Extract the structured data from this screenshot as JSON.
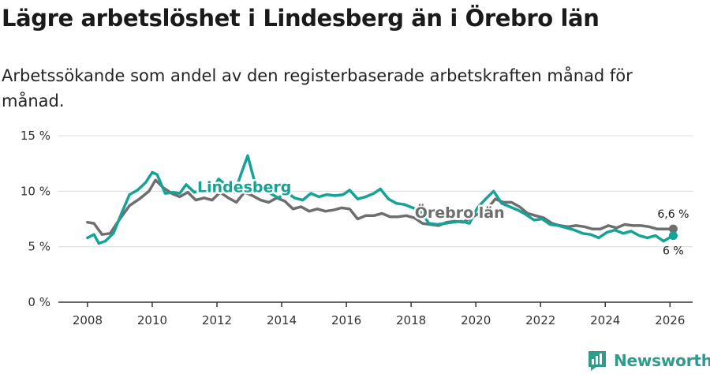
{
  "header": {
    "title": "Lägre arbetslöshet i Lindesberg än i Örebro län",
    "subtitle": "Arbetssökande som andel av den registerbaserade arbetskraften månad för månad."
  },
  "colors": {
    "lindesberg": "#14a396",
    "orebro": "#6e6e6e",
    "gridline": "#dcdcdc",
    "axis": "#333333",
    "brand": "#2f9b8a"
  },
  "chart_data": {
    "type": "line",
    "title": "Lägre arbetslöshet i Lindesberg än i Örebro län",
    "subtitle": "Arbetssökande som andel av den registerbaserade arbetskraften månad för månad.",
    "xlabel": "",
    "ylabel": "",
    "xlim": [
      2007.1,
      2026.7
    ],
    "ylim": [
      0,
      15
    ],
    "x_ticks": [
      2008,
      2010,
      2012,
      2014,
      2016,
      2018,
      2020,
      2022,
      2024,
      2026
    ],
    "x_tick_labels": [
      "2008",
      "2010",
      "2012",
      "2014",
      "2016",
      "2018",
      "2020",
      "2022",
      "2024",
      "2026"
    ],
    "y_ticks": [
      0,
      5,
      10,
      15
    ],
    "y_tick_labels": [
      "0 %",
      "5 %",
      "10 %",
      "15 %"
    ],
    "grid": true,
    "series": [
      {
        "name": "Örebro län",
        "label": "Örebro län",
        "end_label": "6,6 %",
        "x": [
          2008.0,
          2008.2,
          2008.45,
          2008.7,
          2009.0,
          2009.3,
          2009.6,
          2009.9,
          2010.1,
          2010.35,
          2010.6,
          2010.85,
          2011.1,
          2011.35,
          2011.6,
          2011.85,
          2012.1,
          2012.35,
          2012.6,
          2012.85,
          2013.1,
          2013.35,
          2013.6,
          2013.85,
          2014.1,
          2014.35,
          2014.6,
          2014.85,
          2015.1,
          2015.35,
          2015.6,
          2015.85,
          2016.1,
          2016.35,
          2016.6,
          2016.85,
          2017.1,
          2017.35,
          2017.6,
          2017.85,
          2018.1,
          2018.35,
          2018.6,
          2018.85,
          2019.1,
          2019.35,
          2019.6,
          2019.85,
          2020.1,
          2020.35,
          2020.6,
          2020.85,
          2021.1,
          2021.35,
          2021.6,
          2021.85,
          2022.1,
          2022.35,
          2022.6,
          2022.85,
          2023.1,
          2023.35,
          2023.6,
          2023.85,
          2024.1,
          2024.35,
          2024.6,
          2024.85,
          2025.1,
          2025.35,
          2025.6,
          2025.85,
          2026.1
        ],
        "values": [
          7.2,
          7.1,
          6.1,
          6.2,
          7.5,
          8.7,
          9.3,
          10.0,
          11.0,
          10.3,
          9.8,
          9.5,
          9.9,
          9.2,
          9.4,
          9.2,
          9.9,
          9.4,
          9.0,
          9.9,
          9.6,
          9.2,
          9.0,
          9.4,
          9.1,
          8.4,
          8.6,
          8.2,
          8.4,
          8.2,
          8.3,
          8.5,
          8.4,
          7.5,
          7.8,
          7.8,
          8.0,
          7.7,
          7.7,
          7.8,
          7.6,
          7.1,
          7.0,
          6.9,
          7.2,
          7.3,
          7.2,
          7.6,
          8.0,
          8.4,
          9.3,
          9.0,
          9.0,
          8.6,
          8.0,
          7.8,
          7.6,
          7.1,
          6.9,
          6.8,
          6.9,
          6.8,
          6.6,
          6.6,
          6.9,
          6.7,
          7.0,
          6.9,
          6.9,
          6.8,
          6.6,
          6.6,
          6.6
        ]
      },
      {
        "name": "Lindesberg",
        "label": "Lindesberg",
        "end_label": "6 %",
        "x": [
          2008.0,
          2008.2,
          2008.35,
          2008.55,
          2008.8,
          2009.05,
          2009.3,
          2009.55,
          2009.8,
          2010.0,
          2010.15,
          2010.4,
          2010.65,
          2010.85,
          2011.05,
          2011.3,
          2011.55,
          2011.8,
          2012.05,
          2012.3,
          2012.55,
          2012.75,
          2012.95,
          2013.15,
          2013.4,
          2013.65,
          2013.9,
          2014.15,
          2014.4,
          2014.65,
          2014.9,
          2015.15,
          2015.4,
          2015.65,
          2015.9,
          2016.1,
          2016.35,
          2016.6,
          2016.85,
          2017.05,
          2017.3,
          2017.55,
          2017.8,
          2018.05,
          2018.3,
          2018.55,
          2018.8,
          2019.05,
          2019.3,
          2019.55,
          2019.8,
          2020.05,
          2020.3,
          2020.55,
          2020.8,
          2021.05,
          2021.3,
          2021.55,
          2021.8,
          2022.05,
          2022.3,
          2022.55,
          2022.8,
          2023.05,
          2023.3,
          2023.55,
          2023.8,
          2024.05,
          2024.3,
          2024.55,
          2024.8,
          2025.05,
          2025.3,
          2025.55,
          2025.8,
          2026.1
        ],
        "values": [
          5.8,
          6.1,
          5.3,
          5.5,
          6.2,
          8.0,
          9.7,
          10.1,
          10.8,
          11.7,
          11.5,
          9.8,
          9.9,
          9.8,
          10.6,
          9.9,
          10.1,
          9.9,
          11.1,
          10.5,
          9.9,
          11.6,
          13.2,
          11.0,
          10.2,
          9.8,
          9.4,
          9.9,
          9.4,
          9.2,
          9.8,
          9.5,
          9.7,
          9.6,
          9.7,
          10.1,
          9.3,
          9.5,
          9.8,
          10.2,
          9.3,
          8.9,
          8.8,
          8.5,
          8.2,
          7.1,
          7.0,
          7.1,
          7.2,
          7.3,
          7.1,
          8.5,
          9.3,
          10.0,
          8.9,
          8.6,
          8.3,
          7.9,
          7.4,
          7.5,
          7.0,
          6.9,
          6.7,
          6.5,
          6.2,
          6.1,
          5.8,
          6.3,
          6.5,
          6.2,
          6.4,
          6.0,
          5.8,
          6.0,
          5.5,
          6.0
        ]
      }
    ]
  },
  "brand": {
    "icon": "newsworthy-logo-icon",
    "name": "Newsworthy"
  }
}
